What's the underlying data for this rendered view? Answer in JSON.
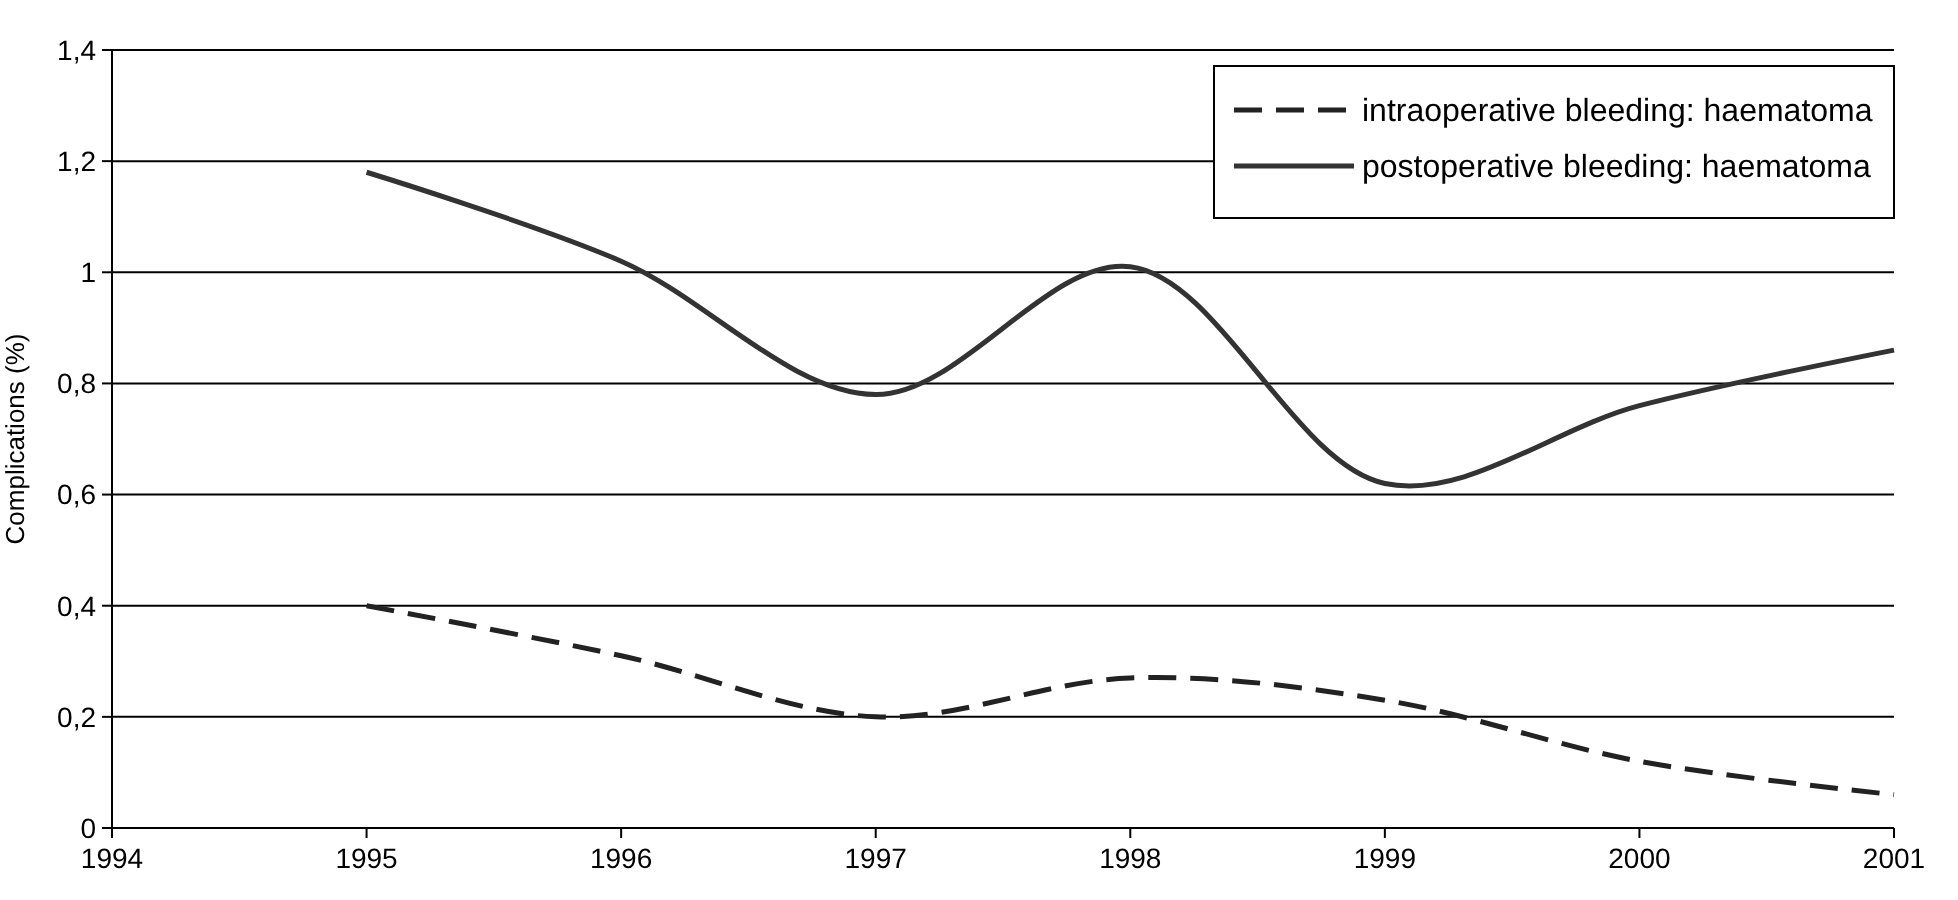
{
  "chart_data": {
    "type": "line",
    "ylabel": "Complications (%)",
    "x": [
      1995,
      1996,
      1997,
      1998,
      1999,
      2000,
      2001
    ],
    "series": [
      {
        "name": "intraoperative bleeding: haematoma",
        "color": "#222222",
        "line_style": "dashed",
        "values": [
          0.4,
          0.31,
          0.2,
          0.27,
          0.23,
          0.12,
          0.06
        ]
      },
      {
        "name": "postoperative bleeding: haematoma",
        "color": "#333333",
        "line_style": "solid",
        "values": [
          1.18,
          1.02,
          0.78,
          1.01,
          0.62,
          0.76,
          0.86
        ]
      }
    ],
    "xlim": [
      1994,
      2001
    ],
    "xticks": [
      1994,
      1995,
      1996,
      1997,
      1998,
      1999,
      2000,
      2001
    ],
    "ylim": [
      0,
      1.4
    ],
    "yticks": [
      0,
      {
        "value": 0.2,
        "label": "0,2"
      },
      {
        "value": 0.4,
        "label": "0,4"
      },
      {
        "value": 0.6,
        "label": "0,6"
      },
      {
        "value": 0.8,
        "label": "0,8"
      },
      {
        "value": 1,
        "label": "1"
      },
      {
        "value": 1.2,
        "label": "1,2"
      },
      {
        "value": 1.4,
        "label": "1,4"
      }
    ],
    "grid": "y",
    "legend": "top right",
    "marker": "none"
  }
}
